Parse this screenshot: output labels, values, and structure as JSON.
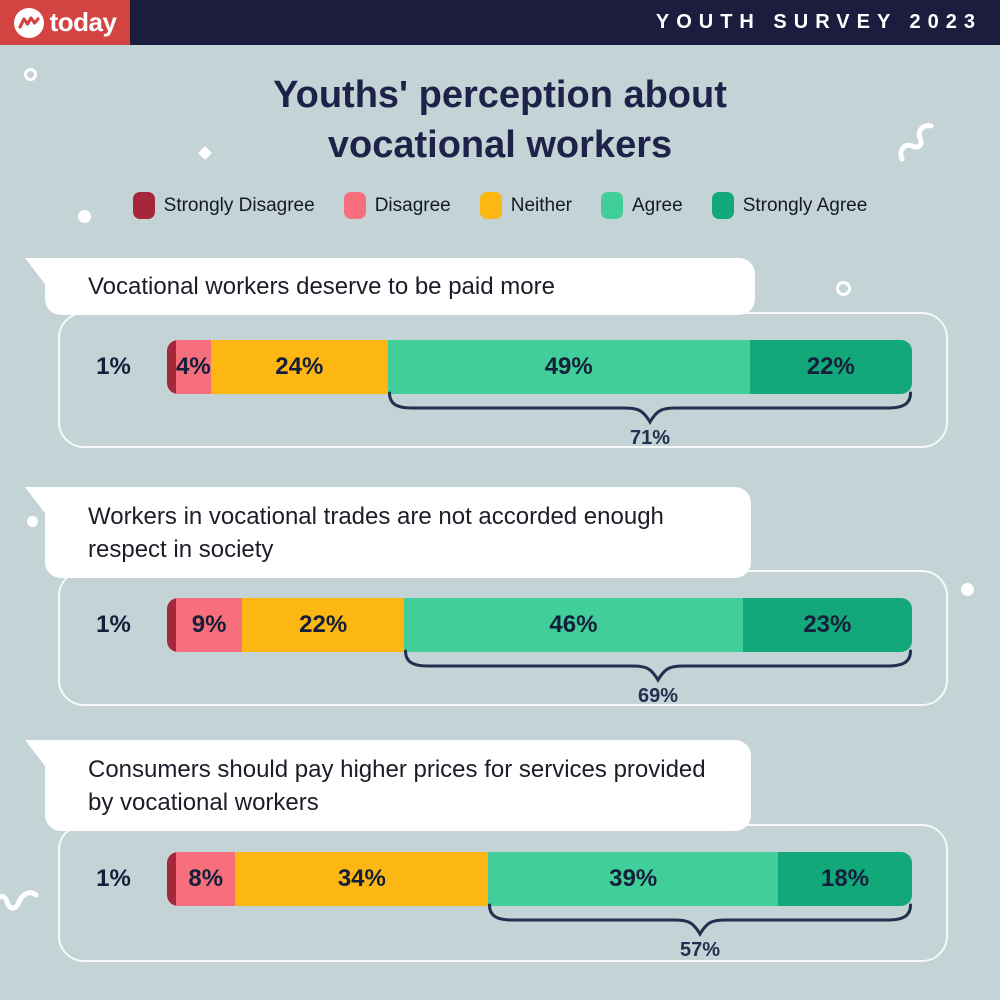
{
  "header": {
    "brand": "today",
    "banner": "YOUTH SURVEY 2023"
  },
  "title": "Youths' perception about vocational workers",
  "legend": {
    "items": [
      {
        "key": "strongly_disagree",
        "label": "Strongly Disagree"
      },
      {
        "key": "disagree",
        "label": "Disagree"
      },
      {
        "key": "neither",
        "label": "Neither"
      },
      {
        "key": "agree",
        "label": "Agree"
      },
      {
        "key": "strongly_agree",
        "label": "Strongly Agree"
      }
    ]
  },
  "colors": {
    "strongly_disagree": "#a7273a",
    "disagree": "#f76f7d",
    "neither": "#fcb712",
    "agree": "#41ce9b",
    "strongly_agree": "#13a87a",
    "background": "#c3d3d6",
    "header_navy": "#1c1d3e",
    "logo_red": "#d24341",
    "title_navy": "#1e2248",
    "brace_navy": "#223050"
  },
  "cards": [
    {
      "question": "Vocational workers deserve to be paid more",
      "segments": [
        {
          "key": "strongly_disagree",
          "label": "1%",
          "value": 1,
          "outside": true
        },
        {
          "key": "disagree",
          "label": "4%",
          "value": 4
        },
        {
          "key": "neither",
          "label": "24%",
          "value": 24
        },
        {
          "key": "agree",
          "label": "49%",
          "value": 49
        },
        {
          "key": "strongly_agree",
          "label": "22%",
          "value": 22
        }
      ],
      "combined": {
        "label": "71%",
        "keys": [
          "agree",
          "strongly_agree"
        ]
      }
    },
    {
      "question": "Workers in vocational trades are not accorded enough respect in society",
      "segments": [
        {
          "key": "strongly_disagree",
          "label": "1%",
          "value": 1,
          "outside": true
        },
        {
          "key": "disagree",
          "label": "9%",
          "value": 9
        },
        {
          "key": "neither",
          "label": "22%",
          "value": 22
        },
        {
          "key": "agree",
          "label": "46%",
          "value": 46
        },
        {
          "key": "strongly_agree",
          "label": "23%",
          "value": 23
        }
      ],
      "combined": {
        "label": "69%",
        "keys": [
          "agree",
          "strongly_agree"
        ]
      }
    },
    {
      "question": "Consumers should pay higher prices for services provided by vocational workers",
      "segments": [
        {
          "key": "strongly_disagree",
          "label": "1%",
          "value": 1,
          "outside": true
        },
        {
          "key": "disagree",
          "label": "8%",
          "value": 8
        },
        {
          "key": "neither",
          "label": "34%",
          "value": 34
        },
        {
          "key": "agree",
          "label": "39%",
          "value": 39
        },
        {
          "key": "strongly_agree",
          "label": "18%",
          "value": 18
        }
      ],
      "combined": {
        "label": "57%",
        "keys": [
          "agree",
          "strongly_agree"
        ]
      }
    }
  ],
  "chart_data": {
    "type": "bar",
    "subtype": "horizontal-stacked-likert",
    "title": "Youths' perception about vocational workers",
    "banner": "YOUTH SURVEY 2023",
    "legend_position": "top",
    "categories": [
      "Vocational workers deserve to be paid more",
      "Workers in vocational trades are not accorded enough respect in society",
      "Consumers should pay higher prices for services provided by vocational workers"
    ],
    "series": [
      {
        "name": "Strongly Disagree",
        "values": [
          1,
          1,
          1
        ]
      },
      {
        "name": "Disagree",
        "values": [
          4,
          9,
          8
        ]
      },
      {
        "name": "Neither",
        "values": [
          24,
          22,
          34
        ]
      },
      {
        "name": "Agree",
        "values": [
          49,
          46,
          39
        ]
      },
      {
        "name": "Strongly Agree",
        "values": [
          22,
          23,
          18
        ]
      }
    ],
    "annotations": [
      {
        "category_index": 0,
        "label": "71%",
        "span": [
          "Agree",
          "Strongly Agree"
        ]
      },
      {
        "category_index": 1,
        "label": "69%",
        "span": [
          "Agree",
          "Strongly Agree"
        ]
      },
      {
        "category_index": 2,
        "label": "57%",
        "span": [
          "Agree",
          "Strongly Agree"
        ]
      }
    ],
    "value_unit": "%",
    "xlim": [
      0,
      100
    ],
    "grid": false
  }
}
